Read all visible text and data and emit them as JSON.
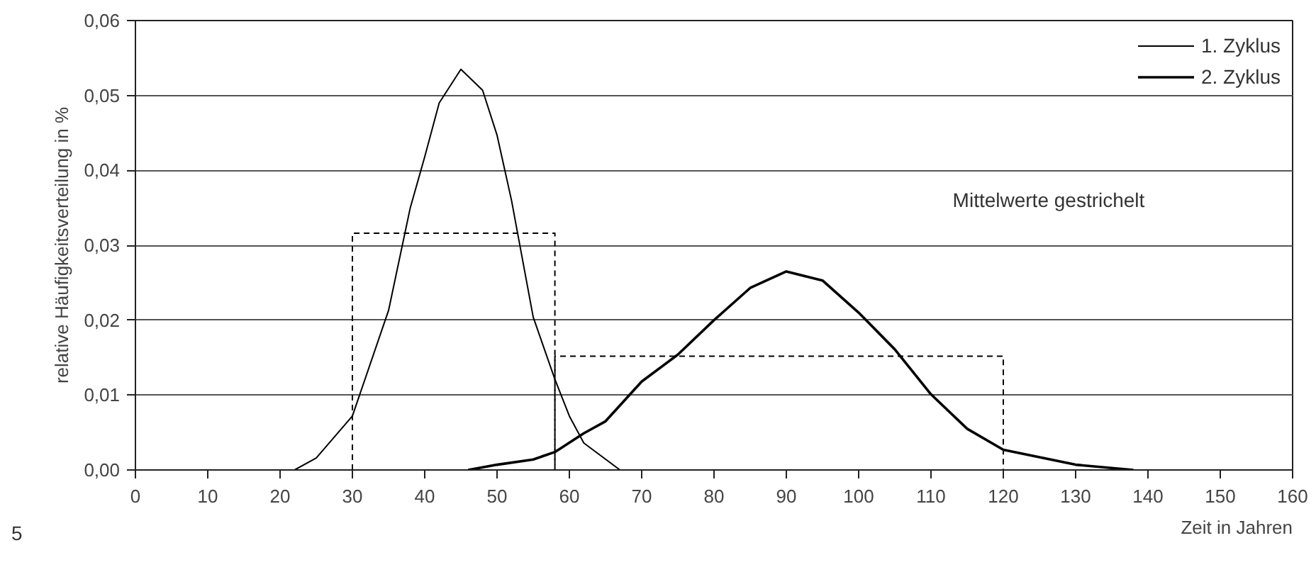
{
  "chart_data": {
    "type": "line",
    "xlabel": "Zeit in Jahren",
    "ylabel": "relative Häufigkeitsverteilung in %",
    "xlim": [
      0,
      160
    ],
    "xticks": [
      0,
      10,
      20,
      30,
      40,
      50,
      60,
      70,
      80,
      90,
      100,
      110,
      120,
      130,
      140,
      150,
      160
    ],
    "ylim": [
      0,
      0.06
    ],
    "yticks": [
      {
        "value": 0,
        "label": "0,00"
      },
      {
        "value": 0.01,
        "label": "0,01"
      },
      {
        "value": 0.02,
        "label": "0,02"
      },
      {
        "value": 0.03,
        "label": "0,03"
      },
      {
        "value": 0.04,
        "label": "0,04"
      },
      {
        "value": 0.05,
        "label": "0,05"
      },
      {
        "value": 0.06,
        "label": "0,06"
      }
    ],
    "grid": "y",
    "legend": "top right",
    "marker": "none",
    "series": [
      {
        "name": "1. Zyklus",
        "color": "#000000",
        "line_style": "solid",
        "x": [
          22,
          25,
          30,
          35,
          38,
          40,
          42,
          45,
          48,
          50,
          52,
          55,
          58,
          60,
          62,
          67
        ],
        "values": [
          0,
          0.0016,
          0.0072,
          0.0213,
          0.035,
          0.0418,
          0.049,
          0.0535,
          0.0507,
          0.0447,
          0.036,
          0.0204,
          0.0121,
          0.0072,
          0.0036,
          0
        ]
      },
      {
        "name": "2. Zyklus",
        "color": "#000000",
        "line_style": "solid",
        "x": [
          46,
          50,
          55,
          58,
          62,
          65,
          70,
          75,
          80,
          85,
          90,
          95,
          100,
          105,
          110,
          115,
          120,
          130,
          138
        ],
        "values": [
          0,
          0.0007,
          0.0014,
          0.0024,
          0.0049,
          0.0065,
          0.0118,
          0.0154,
          0.02,
          0.0243,
          0.0265,
          0.0253,
          0.021,
          0.0161,
          0.0101,
          0.0055,
          0.0027,
          0.0007,
          0
        ]
      },
      {
        "color": "#000000",
        "line_style": "dashed",
        "x": [
          30,
          30,
          58,
          58
        ],
        "values": [
          0,
          0.0316,
          0.0316,
          0
        ]
      },
      {
        "color": "#000000",
        "line_style": "dashed",
        "x": [
          58,
          58,
          120,
          120
        ],
        "values": [
          0,
          0.0152,
          0.0152,
          0
        ]
      }
    ],
    "annotations": [
      "Mittelwerte gestrichelt",
      "5"
    ]
  }
}
